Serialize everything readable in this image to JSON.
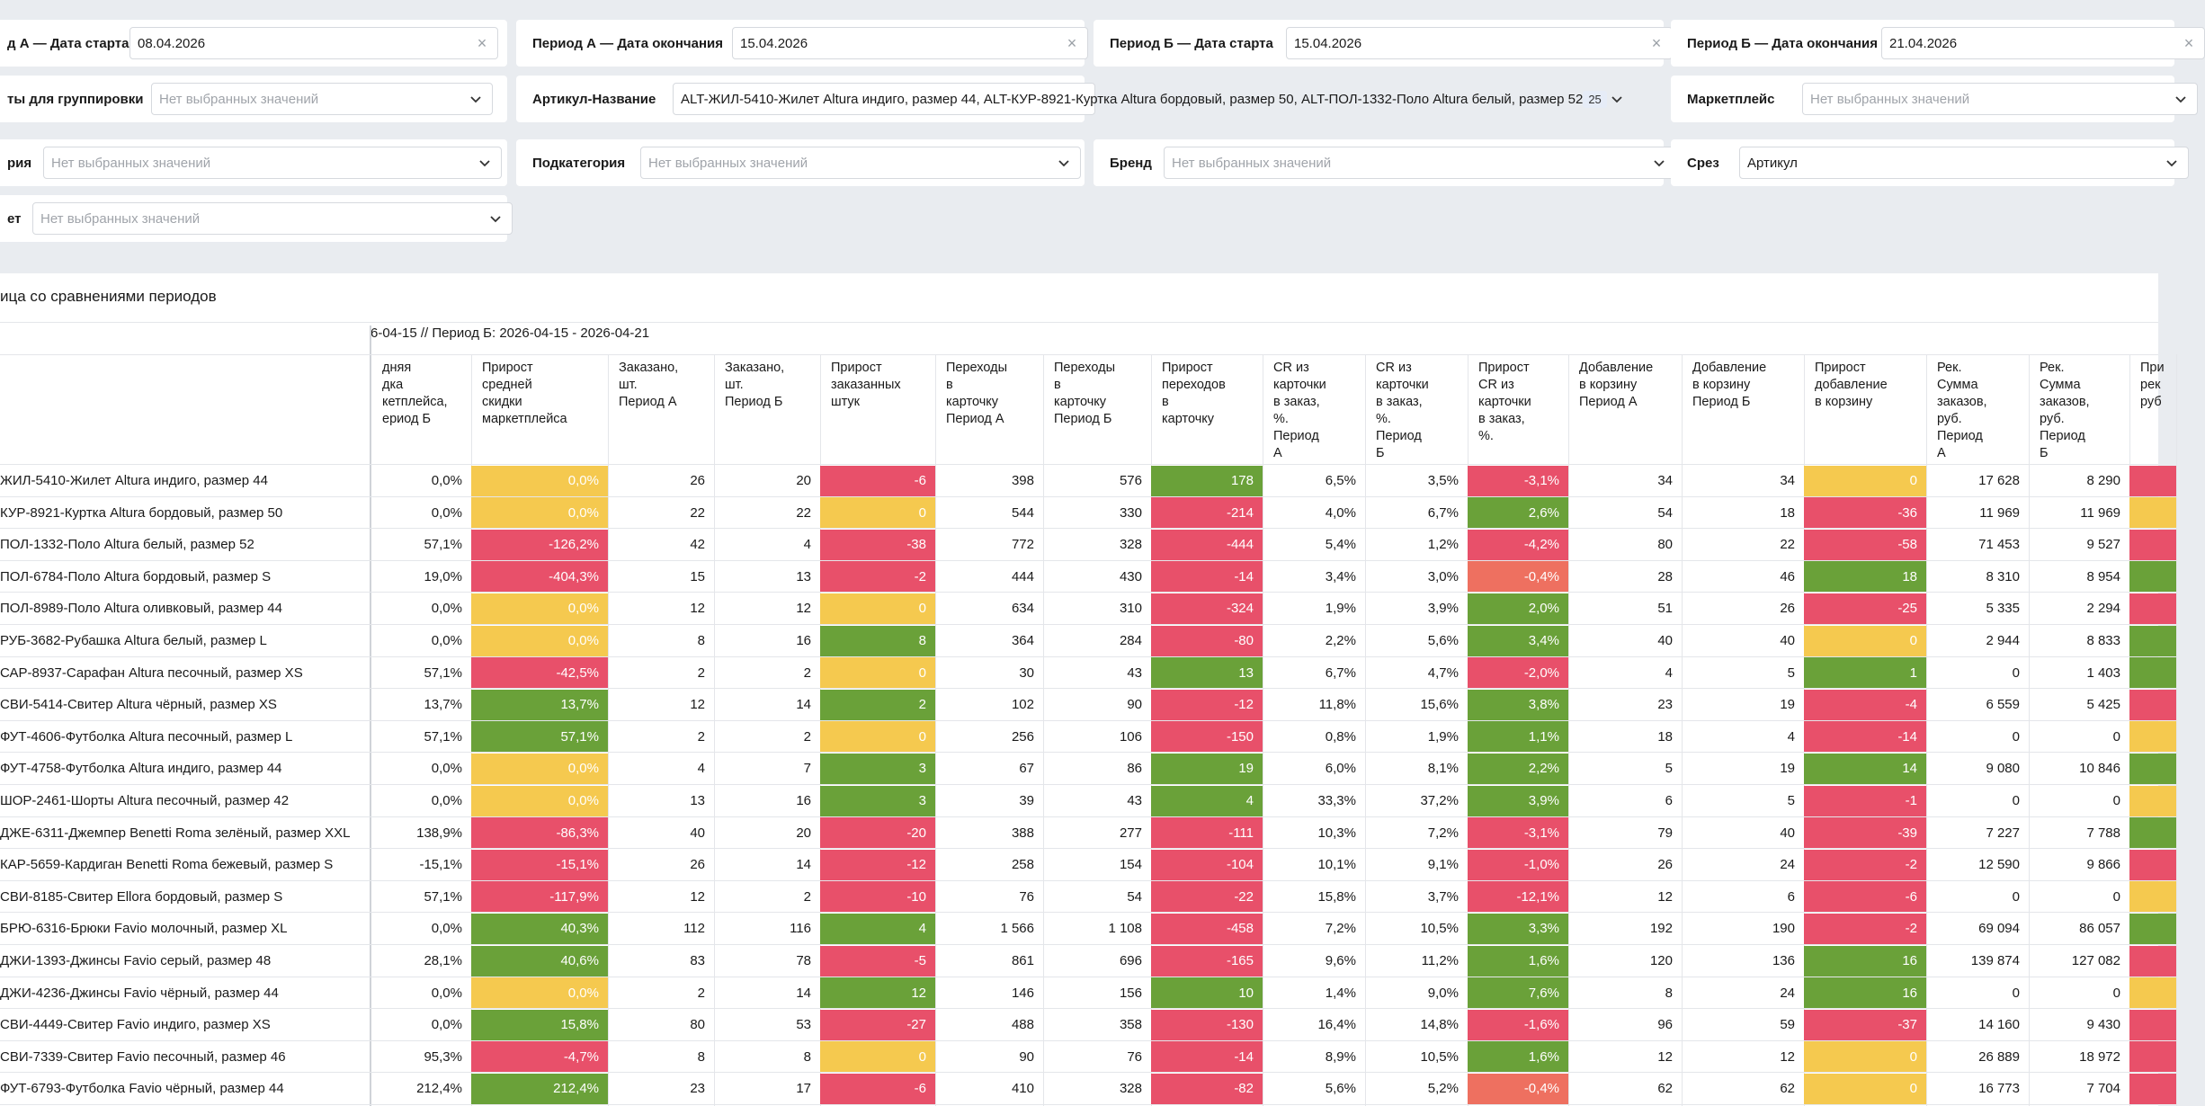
{
  "filters": [
    {
      "id": "period-a-start",
      "label": "д А — Дата старта",
      "value": "08.04.2026",
      "kind": "date"
    },
    {
      "id": "period-a-end",
      "label": "Период А — Дата окончания",
      "value": "15.04.2026",
      "kind": "date"
    },
    {
      "id": "period-b-start",
      "label": "Период Б — Дата старта",
      "value": "15.04.2026",
      "kind": "date"
    },
    {
      "id": "period-b-end",
      "label": "Период Б — Дата окончания",
      "value": "21.04.2026",
      "kind": "date"
    },
    {
      "id": "grouping",
      "label": "ты для группировки",
      "placeholder": "Нет выбранных значений",
      "kind": "select"
    },
    {
      "id": "sku-name",
      "label": "Артикул-Название",
      "value": "ALT-ЖИЛ-5410-Жилет Altura индиго, размер 44, ALT-КУР-8921-Куртка Altura бордовый, размер 50, ALT-ПОЛ-1332-Поло Altura белый, размер 52",
      "badge": "25",
      "kind": "multiselect"
    },
    {
      "id": "marketplace",
      "label": "Маркетплейс",
      "placeholder": "Нет выбранных значений",
      "kind": "select"
    },
    {
      "id": "category",
      "label": "рия",
      "placeholder": "Нет выбранных значений",
      "kind": "select"
    },
    {
      "id": "subcategory",
      "label": "Подкатегория",
      "placeholder": "Нет выбранных значений",
      "kind": "select"
    },
    {
      "id": "brand",
      "label": "Бренд",
      "placeholder": "Нет выбранных значений",
      "kind": "select"
    },
    {
      "id": "slice",
      "label": "Срез",
      "value": "Артикул",
      "kind": "select"
    },
    {
      "id": "color",
      "label": "ет",
      "placeholder": "Нет выбранных значений",
      "kind": "select"
    }
  ],
  "panel": {
    "title": "ица со сравнениями периодов",
    "period_caption": "6-04-15 // Период Б: 2026-04-15 - 2026-04-21"
  },
  "columns": [
    "дняя\nдка\nкетплейса,\nериод Б",
    "Прирост\nсредней\nскидки\nмаркетплейса",
    "Заказано,\nшт.\nПериод А",
    "Заказано,\nшт.\nПериод Б",
    "Прирост\nзаказанных\nштук",
    "Переходы\nв\nкарточку\nПериод А",
    "Переходы\nв\nкарточку\nПериод Б",
    "Прирост\nпереходов\nв\nкарточку",
    "CR из\nкарточки\nв заказ,\n%.\nПериод\nА",
    "CR из\nкарточки\nв заказ,\n%.\nПериод\nБ",
    "Прирост\nCR из\nкарточки\nв заказ,\n%.",
    "Добавление\nв корзину\nПериод А",
    "Добавление\nв корзину\nПериод Б",
    "Прирост\nдобавление\nв корзину",
    "Рек.\nСумма\nзаказов,\nруб.\nПериод\nА",
    "Рек.\nСумма\nзаказов,\nруб.\nПериод\nБ",
    "При\nрек\nруб"
  ],
  "rows": [
    {
      "name": "ЖИЛ-5410-Жилет Altura индиго, размер 44",
      "v": [
        "0,0%",
        "0,0%",
        "26",
        "20",
        "-6",
        "398",
        "576",
        "178",
        "6,5%",
        "3,5%",
        "-3,1%",
        "34",
        "34",
        "0",
        "17 628",
        "8 290",
        ""
      ]
    },
    {
      "name": "КУР-8921-Куртка Altura бордовый, размер 50",
      "v": [
        "0,0%",
        "0,0%",
        "22",
        "22",
        "0",
        "544",
        "330",
        "-214",
        "4,0%",
        "6,7%",
        "2,6%",
        "54",
        "18",
        "-36",
        "11 969",
        "11 969",
        ""
      ]
    },
    {
      "name": "ПОЛ-1332-Поло Altura белый, размер 52",
      "v": [
        "57,1%",
        "-126,2%",
        "42",
        "4",
        "-38",
        "772",
        "328",
        "-444",
        "5,4%",
        "1,2%",
        "-4,2%",
        "80",
        "22",
        "-58",
        "71 453",
        "9 527",
        ""
      ]
    },
    {
      "name": "ПОЛ-6784-Поло Altura бордовый, размер S",
      "v": [
        "19,0%",
        "-404,3%",
        "15",
        "13",
        "-2",
        "444",
        "430",
        "-14",
        "3,4%",
        "3,0%",
        "-0,4%",
        "28",
        "46",
        "18",
        "8 310",
        "8 954",
        ""
      ]
    },
    {
      "name": "ПОЛ-8989-Поло Altura оливковый, размер 44",
      "v": [
        "0,0%",
        "0,0%",
        "12",
        "12",
        "0",
        "634",
        "310",
        "-324",
        "1,9%",
        "3,9%",
        "2,0%",
        "51",
        "26",
        "-25",
        "5 335",
        "2 294",
        ""
      ]
    },
    {
      "name": "РУБ-3682-Рубашка Altura белый, размер L",
      "v": [
        "0,0%",
        "0,0%",
        "8",
        "16",
        "8",
        "364",
        "284",
        "-80",
        "2,2%",
        "5,6%",
        "3,4%",
        "40",
        "40",
        "0",
        "2 944",
        "8 833",
        ""
      ]
    },
    {
      "name": "САР-8937-Сарафан Altura песочный, размер XS",
      "v": [
        "57,1%",
        "-42,5%",
        "2",
        "2",
        "0",
        "30",
        "43",
        "13",
        "6,7%",
        "4,7%",
        "-2,0%",
        "4",
        "5",
        "1",
        "0",
        "1 403",
        ""
      ]
    },
    {
      "name": "СВИ-5414-Свитер Altura чёрный, размер XS",
      "v": [
        "13,7%",
        "13,7%",
        "12",
        "14",
        "2",
        "102",
        "90",
        "-12",
        "11,8%",
        "15,6%",
        "3,8%",
        "23",
        "19",
        "-4",
        "6 559",
        "5 425",
        ""
      ]
    },
    {
      "name": "ФУТ-4606-Футболка Altura песочный, размер L",
      "v": [
        "57,1%",
        "57,1%",
        "2",
        "2",
        "0",
        "256",
        "106",
        "-150",
        "0,8%",
        "1,9%",
        "1,1%",
        "18",
        "4",
        "-14",
        "0",
        "0",
        ""
      ]
    },
    {
      "name": "ФУТ-4758-Футболка Altura индиго, размер 44",
      "v": [
        "0,0%",
        "0,0%",
        "4",
        "7",
        "3",
        "67",
        "86",
        "19",
        "6,0%",
        "8,1%",
        "2,2%",
        "5",
        "19",
        "14",
        "9 080",
        "10 846",
        ""
      ]
    },
    {
      "name": "ШОР-2461-Шорты Altura песочный, размер 42",
      "v": [
        "0,0%",
        "0,0%",
        "13",
        "16",
        "3",
        "39",
        "43",
        "4",
        "33,3%",
        "37,2%",
        "3,9%",
        "6",
        "5",
        "-1",
        "0",
        "0",
        ""
      ]
    },
    {
      "name": "ДЖЕ-6311-Джемпер Benetti Roma зелёный, размер XXL",
      "v": [
        "138,9%",
        "-86,3%",
        "40",
        "20",
        "-20",
        "388",
        "277",
        "-111",
        "10,3%",
        "7,2%",
        "-3,1%",
        "79",
        "40",
        "-39",
        "7 227",
        "7 788",
        ""
      ]
    },
    {
      "name": "КАР-5659-Кардиган Benetti Roma бежевый, размер S",
      "v": [
        "-15,1%",
        "-15,1%",
        "26",
        "14",
        "-12",
        "258",
        "154",
        "-104",
        "10,1%",
        "9,1%",
        "-1,0%",
        "26",
        "24",
        "-2",
        "12 590",
        "9 866",
        ""
      ]
    },
    {
      "name": "СВИ-8185-Свитер Ellora бордовый, размер S",
      "v": [
        "57,1%",
        "-117,9%",
        "12",
        "2",
        "-10",
        "76",
        "54",
        "-22",
        "15,8%",
        "3,7%",
        "-12,1%",
        "12",
        "6",
        "-6",
        "0",
        "0",
        ""
      ]
    },
    {
      "name": "БРЮ-6316-Брюки Favio молочный, размер XL",
      "v": [
        "0,0%",
        "40,3%",
        "112",
        "116",
        "4",
        "1 566",
        "1 108",
        "-458",
        "7,2%",
        "10,5%",
        "3,3%",
        "192",
        "190",
        "-2",
        "69 094",
        "86 057",
        ""
      ]
    },
    {
      "name": "ДЖИ-1393-Джинсы Favio серый, размер 48",
      "v": [
        "28,1%",
        "40,6%",
        "83",
        "78",
        "-5",
        "861",
        "696",
        "-165",
        "9,6%",
        "11,2%",
        "1,6%",
        "120",
        "136",
        "16",
        "139 874",
        "127 082",
        ""
      ]
    },
    {
      "name": "ДЖИ-4236-Джинсы Favio чёрный, размер 44",
      "v": [
        "0,0%",
        "0,0%",
        "2",
        "14",
        "12",
        "146",
        "156",
        "10",
        "1,4%",
        "9,0%",
        "7,6%",
        "8",
        "24",
        "16",
        "0",
        "0",
        ""
      ]
    },
    {
      "name": "СВИ-4449-Свитер Favio индиго, размер XS",
      "v": [
        "0,0%",
        "15,8%",
        "80",
        "53",
        "-27",
        "488",
        "358",
        "-130",
        "16,4%",
        "14,8%",
        "-1,6%",
        "96",
        "59",
        "-37",
        "14 160",
        "9 430",
        ""
      ]
    },
    {
      "name": "СВИ-7339-Свитер Favio песочный, размер 46",
      "v": [
        "95,3%",
        "-4,7%",
        "8",
        "8",
        "0",
        "90",
        "76",
        "-14",
        "8,9%",
        "10,5%",
        "1,6%",
        "12",
        "12",
        "0",
        "26 889",
        "18 972",
        ""
      ]
    },
    {
      "name": "ФУТ-6793-Футболка Favio чёрный, размер 44",
      "v": [
        "212,4%",
        "212,4%",
        "23",
        "17",
        "-6",
        "410",
        "328",
        "-82",
        "5,6%",
        "5,2%",
        "-0,4%",
        "62",
        "62",
        "0",
        "16 773",
        "7 704",
        ""
      ]
    }
  ],
  "colors": {
    "green": "#6aa139",
    "red": "#e8506a",
    "yellow": "#f5c94f",
    "salmon": "#ee7060"
  }
}
